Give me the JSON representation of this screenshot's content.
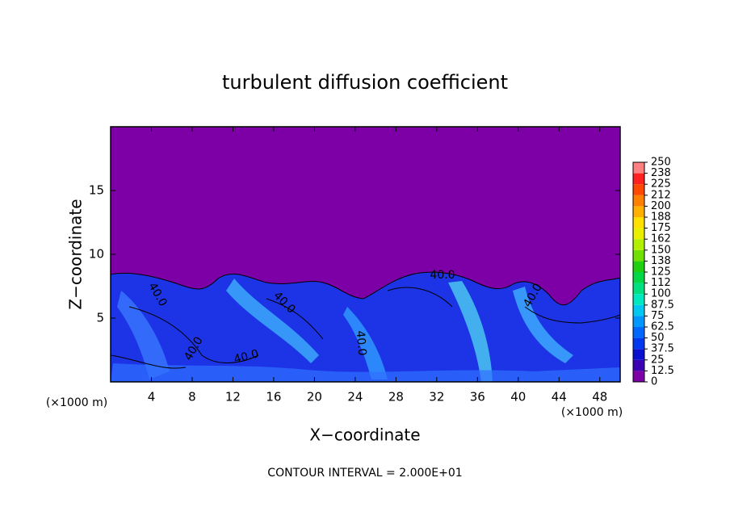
{
  "chart_data": {
    "type": "contour",
    "title": "turbulent diffusion coefficient",
    "x_label": "X−coordinate",
    "y_label": "Z−coordinate",
    "x_unit": "(×1000 m)",
    "footer": "CONTOUR INTERVAL = 2.000E+01",
    "xlim": [
      0,
      50
    ],
    "ylim": [
      0,
      20
    ],
    "xticks": [
      4,
      8,
      12,
      16,
      20,
      24,
      28,
      32,
      36,
      40,
      44,
      48
    ],
    "yticks": [
      5,
      10,
      15
    ],
    "contour_labels": [
      "40.0",
      "40.0",
      "40.0",
      "40.0",
      "40.0",
      "40.0",
      "40.0"
    ],
    "colorbar": {
      "levels": [
        0,
        12.5,
        25,
        37.5,
        50,
        62.5,
        75,
        87.5,
        100,
        {
          "value": 112.5,
          "label": "112"
        },
        125,
        {
          "value": 137.5,
          "label": "138"
        },
        150,
        {
          "value": 162.5,
          "label": "162"
        },
        175,
        {
          "value": 187.5,
          "label": "188"
        },
        200,
        {
          "value": 212.5,
          "label": "212"
        },
        225,
        {
          "value": 237.5,
          "label": "238"
        },
        250
      ],
      "colors": [
        "#7d00a6",
        "#3c00b4",
        "#0a10d0",
        "#0038f0",
        "#0068ff",
        "#0098ff",
        "#00c8f0",
        "#00e8c0",
        "#00e080",
        "#00d848",
        "#20d010",
        "#70e000",
        "#b0f000",
        "#e8f000",
        "#ffe000",
        "#ffb000",
        "#ff8000",
        "#ff4800",
        "#ff2020",
        "#ff8080"
      ]
    }
  }
}
